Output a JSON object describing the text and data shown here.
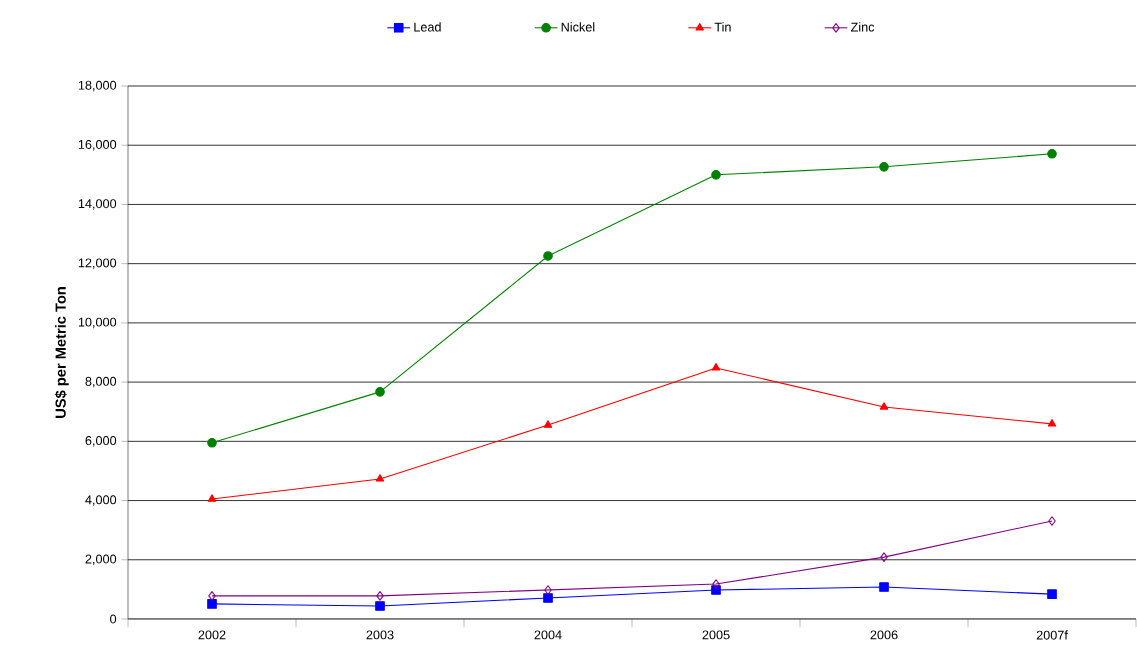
{
  "chart_data": {
    "type": "line",
    "ylabel": "US$ per Metric Ton",
    "categories": [
      "2002",
      "2003",
      "2004",
      "2005",
      "2006",
      "2007f"
    ],
    "series": [
      {
        "name": "Lead",
        "color": "#0000ff",
        "marker": "square",
        "values": [
          510,
          440,
          710,
          980,
          1080,
          840
        ]
      },
      {
        "name": "Nickel",
        "color": "#008000",
        "marker": "circle",
        "values": [
          5950,
          7670,
          12260,
          15000,
          15270,
          15710
        ]
      },
      {
        "name": "Tin",
        "color": "#ff0000",
        "marker": "triangle",
        "values": [
          4050,
          4730,
          6550,
          8480,
          7160,
          6590
        ]
      },
      {
        "name": "Zinc",
        "color": "#800080",
        "marker": "diamond",
        "values": [
          780,
          780,
          980,
          1180,
          2090,
          3310
        ]
      }
    ],
    "ylim": [
      0,
      18000
    ],
    "yticks": [
      0,
      {
        "value": 2000,
        "label": "2,000"
      },
      {
        "value": 4000,
        "label": "4,000"
      },
      {
        "value": 6000,
        "label": "6,000"
      },
      {
        "value": 8000,
        "label": "8,000"
      },
      {
        "value": 10000,
        "label": "10,000"
      },
      {
        "value": 12000,
        "label": "12,000"
      },
      {
        "value": 14000,
        "label": "14,000"
      },
      {
        "value": 16000,
        "label": "16,000"
      },
      {
        "value": 18000,
        "label": "18,000"
      }
    ],
    "grid": "y",
    "legend": "top",
    "line_style": "solid"
  }
}
